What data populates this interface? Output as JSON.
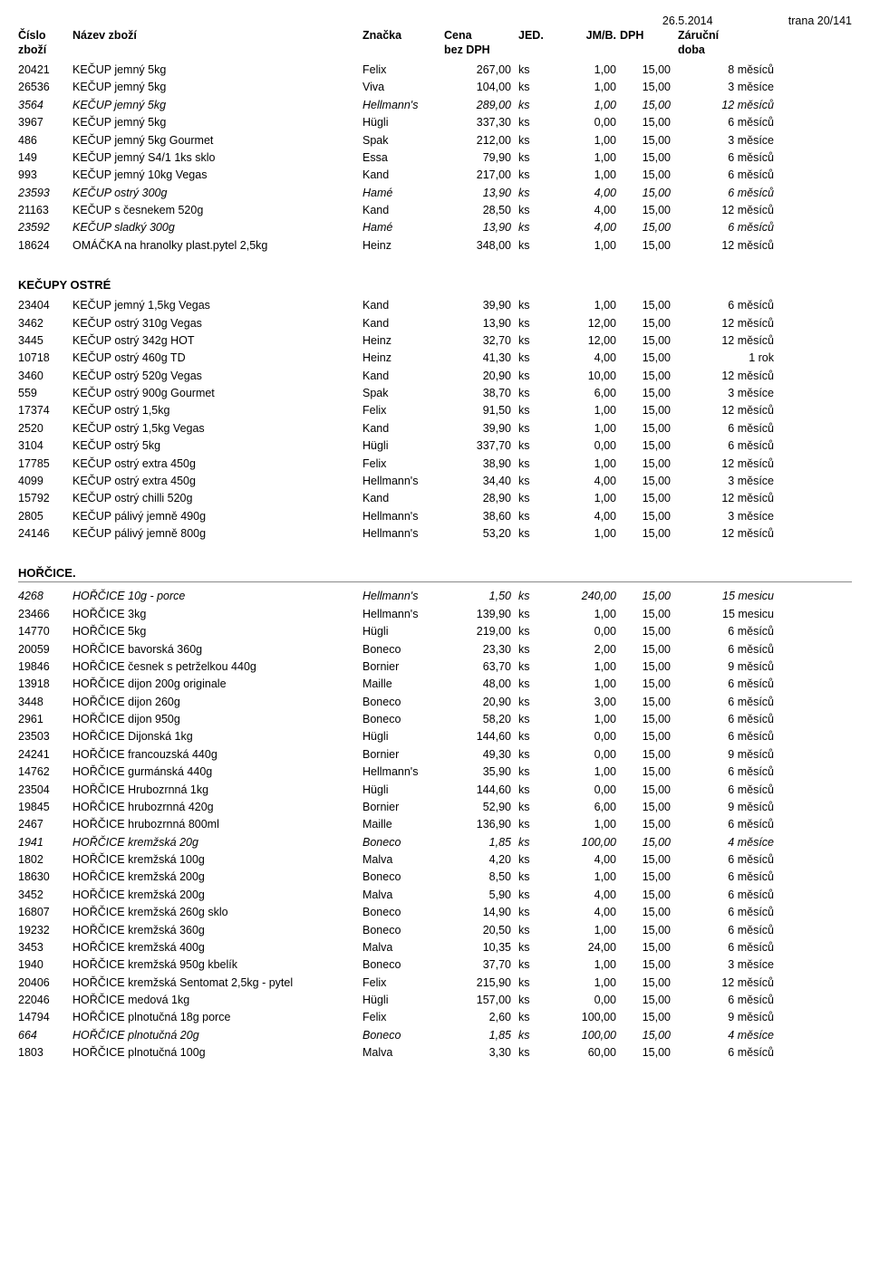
{
  "meta": {
    "date": "26.5.2014",
    "page": "trana 20/141"
  },
  "headers": {
    "c0a": "Číslo",
    "c0b": "zboží",
    "c1": "Název zboží",
    "c2": "Značka",
    "c3a": "Cena",
    "c3b": "bez DPH",
    "c4": "JED.",
    "c5": "JM/B.",
    "c6": "DPH",
    "c7a": "Záruční",
    "c7b": "doba"
  },
  "sections": [
    {
      "title": null,
      "underline": false,
      "rows": [
        {
          "it": false,
          "c": [
            "20421",
            "KEČUP jemný  5kg",
            "Felix",
            "267,00",
            "ks",
            "1,00",
            "15,00",
            "8 měsíců"
          ]
        },
        {
          "it": false,
          "c": [
            "26536",
            "KEČUP jemný  5kg",
            "Viva",
            "104,00",
            "ks",
            "1,00",
            "15,00",
            "3 měsíce"
          ]
        },
        {
          "it": true,
          "c": [
            "3564",
            "KEČUP jemný  5kg",
            "Hellmann's",
            "289,00",
            "ks",
            "1,00",
            "15,00",
            "12 měsíců"
          ]
        },
        {
          "it": false,
          "c": [
            "3967",
            "KEČUP jemný  5kg",
            "Hügli",
            "337,30",
            "ks",
            "0,00",
            "15,00",
            "6 měsíců"
          ]
        },
        {
          "it": false,
          "c": [
            "486",
            "KEČUP jemný  5kg Gourmet",
            "Spak",
            "212,00",
            "ks",
            "1,00",
            "15,00",
            "3 měsíce"
          ]
        },
        {
          "it": false,
          "c": [
            "149",
            "KEČUP jemný S4/1 1ks sklo",
            "Essa",
            "79,90",
            "ks",
            "1,00",
            "15,00",
            "6 měsíců"
          ]
        },
        {
          "it": false,
          "c": [
            "993",
            "KEČUP jemný 10kg Vegas",
            "Kand",
            "217,00",
            "ks",
            "1,00",
            "15,00",
            "6 měsíců"
          ]
        },
        {
          "it": true,
          "c": [
            "23593",
            "KEČUP ostrý  300g",
            "Hamé",
            "13,90",
            "ks",
            "4,00",
            "15,00",
            "6 měsíců"
          ]
        },
        {
          "it": false,
          "c": [
            "21163",
            "KEČUP s česnekem  520g",
            "Kand",
            "28,50",
            "ks",
            "4,00",
            "15,00",
            "12 měsíců"
          ]
        },
        {
          "it": true,
          "c": [
            "23592",
            "KEČUP sladký  300g",
            "Hamé",
            "13,90",
            "ks",
            "4,00",
            "15,00",
            "6 měsíců"
          ]
        },
        {
          "it": false,
          "c": [
            "18624",
            "OMÁČKA na hranolky plast.pytel  2,5kg",
            "Heinz",
            "348,00",
            "ks",
            "1,00",
            "15,00",
            "12 měsíců"
          ]
        }
      ]
    },
    {
      "title": "KEČUPY OSTRÉ",
      "underline": false,
      "rows": [
        {
          "it": false,
          "c": [
            "23404",
            "KEČUP jemný 1,5kg Vegas",
            "Kand",
            "39,90",
            "ks",
            "1,00",
            "15,00",
            "6 měsíců"
          ]
        },
        {
          "it": false,
          "c": [
            "3462",
            "KEČUP ostrý  310g Vegas",
            "Kand",
            "13,90",
            "ks",
            "12,00",
            "15,00",
            "12 měsíců"
          ]
        },
        {
          "it": false,
          "c": [
            "3445",
            "KEČUP ostrý  342g HOT",
            "Heinz",
            "32,70",
            "ks",
            "12,00",
            "15,00",
            "12 měsíců"
          ]
        },
        {
          "it": false,
          "c": [
            "10718",
            "KEČUP ostrý  460g TD",
            "Heinz",
            "41,30",
            "ks",
            "4,00",
            "15,00",
            "1 rok"
          ]
        },
        {
          "it": false,
          "c": [
            "3460",
            "KEČUP ostrý  520g Vegas",
            "Kand",
            "20,90",
            "ks",
            "10,00",
            "15,00",
            "12 měsíců"
          ]
        },
        {
          "it": false,
          "c": [
            "559",
            "KEČUP ostrý  900g Gourmet",
            "Spak",
            "38,70",
            "ks",
            "6,00",
            "15,00",
            "3 měsíce"
          ]
        },
        {
          "it": false,
          "c": [
            "17374",
            "KEČUP ostrý 1,5kg",
            "Felix",
            "91,50",
            "ks",
            "1,00",
            "15,00",
            "12 měsíců"
          ]
        },
        {
          "it": false,
          "c": [
            "2520",
            "KEČUP ostrý 1,5kg Vegas",
            "Kand",
            "39,90",
            "ks",
            "1,00",
            "15,00",
            "6 měsíců"
          ]
        },
        {
          "it": false,
          "c": [
            "3104",
            "KEČUP ostrý 5kg",
            "Hügli",
            "337,70",
            "ks",
            "0,00",
            "15,00",
            "6 měsíců"
          ]
        },
        {
          "it": false,
          "c": [
            "17785",
            "KEČUP ostrý extra 450g",
            "Felix",
            "38,90",
            "ks",
            "1,00",
            "15,00",
            "12 měsíců"
          ]
        },
        {
          "it": false,
          "c": [
            "4099",
            "KEČUP ostrý extra 450g",
            "Hellmann's",
            "34,40",
            "ks",
            "4,00",
            "15,00",
            "3 měsíce"
          ]
        },
        {
          "it": false,
          "c": [
            "15792",
            "KEČUP ostrý chilli 520g",
            "Kand",
            "28,90",
            "ks",
            "1,00",
            "15,00",
            "12 měsíců"
          ]
        },
        {
          "it": false,
          "c": [
            "2805",
            "KEČUP pálivý jemně 490g",
            "Hellmann's",
            "38,60",
            "ks",
            "4,00",
            "15,00",
            "3 měsíce"
          ]
        },
        {
          "it": false,
          "c": [
            "24146",
            "KEČUP pálivý jemně 800g",
            "Hellmann's",
            "53,20",
            "ks",
            "1,00",
            "15,00",
            "12 měsíců"
          ]
        }
      ]
    },
    {
      "title": "HOŘČICE.",
      "underline": true,
      "rows": [
        {
          "it": true,
          "c": [
            "4268",
            "HOŘČICE 10g - porce",
            "Hellmann's",
            "1,50",
            "ks",
            "240,00",
            "15,00",
            "15 mesicu"
          ]
        },
        {
          "it": false,
          "c": [
            "23466",
            "HOŘČICE 3kg",
            "Hellmann's",
            "139,90",
            "ks",
            "1,00",
            "15,00",
            "15 mesicu"
          ]
        },
        {
          "it": false,
          "c": [
            "14770",
            "HOŘČICE 5kg",
            "Hügli",
            "219,00",
            "ks",
            "0,00",
            "15,00",
            "6 měsíců"
          ]
        },
        {
          "it": false,
          "c": [
            "20059",
            "HOŘČICE bavorská 360g",
            "Boneco",
            "23,30",
            "ks",
            "2,00",
            "15,00",
            "6 měsíců"
          ]
        },
        {
          "it": false,
          "c": [
            "19846",
            "HOŘČICE česnek s petrželkou 440g",
            "Bornier",
            "63,70",
            "ks",
            "1,00",
            "15,00",
            "9 měsíců"
          ]
        },
        {
          "it": false,
          "c": [
            "13918",
            "HOŘČICE dijon 200g originale",
            "Maille",
            "48,00",
            "ks",
            "1,00",
            "15,00",
            "6 měsíců"
          ]
        },
        {
          "it": false,
          "c": [
            "3448",
            "HOŘČICE dijon 260g",
            "Boneco",
            "20,90",
            "ks",
            "3,00",
            "15,00",
            "6 měsíců"
          ]
        },
        {
          "it": false,
          "c": [
            "2961",
            "HOŘČICE dijon 950g",
            "Boneco",
            "58,20",
            "ks",
            "1,00",
            "15,00",
            "6 měsíců"
          ]
        },
        {
          "it": false,
          "c": [
            "23503",
            "HOŘČICE Dijonská 1kg",
            "Hügli",
            "144,60",
            "ks",
            "0,00",
            "15,00",
            "6 měsíců"
          ]
        },
        {
          "it": false,
          "c": [
            "24241",
            "HOŘČICE francouzská 440g",
            "Bornier",
            "49,30",
            "ks",
            "0,00",
            "15,00",
            "9 měsíců"
          ]
        },
        {
          "it": false,
          "c": [
            "14762",
            "HOŘČICE gurmánská 440g",
            "Hellmann's",
            "35,90",
            "ks",
            "1,00",
            "15,00",
            "6 měsíců"
          ]
        },
        {
          "it": false,
          "c": [
            "23504",
            "HOŘČICE Hrubozrnná 1kg",
            "Hügli",
            "144,60",
            "ks",
            "0,00",
            "15,00",
            "6 měsíců"
          ]
        },
        {
          "it": false,
          "c": [
            "19845",
            "HOŘČICE hrubozrnná 420g",
            "Bornier",
            "52,90",
            "ks",
            "6,00",
            "15,00",
            "9 měsíců"
          ]
        },
        {
          "it": false,
          "c": [
            "2467",
            "HOŘČICE hrubozrnná 800ml",
            "Maille",
            "136,90",
            "ks",
            "1,00",
            "15,00",
            "6 měsíců"
          ]
        },
        {
          "it": true,
          "c": [
            "1941",
            "HOŘČICE kremžská  20g",
            "Boneco",
            "1,85",
            "ks",
            "100,00",
            "15,00",
            "4 měsíce"
          ]
        },
        {
          "it": false,
          "c": [
            "1802",
            "HOŘČICE kremžská 100g",
            "Malva",
            "4,20",
            "ks",
            "4,00",
            "15,00",
            "6 měsíců"
          ]
        },
        {
          "it": false,
          "c": [
            "18630",
            "HOŘČICE kremžská 200g",
            "Boneco",
            "8,50",
            "ks",
            "1,00",
            "15,00",
            "6 měsíců"
          ]
        },
        {
          "it": false,
          "c": [
            "3452",
            "HOŘČICE kremžská 200g",
            "Malva",
            "5,90",
            "ks",
            "4,00",
            "15,00",
            "6 měsíců"
          ]
        },
        {
          "it": false,
          "c": [
            "16807",
            "HOŘČICE kremžská 260g sklo",
            "Boneco",
            "14,90",
            "ks",
            "4,00",
            "15,00",
            "6 měsíců"
          ]
        },
        {
          "it": false,
          "c": [
            "19232",
            "HOŘČICE kremžská 360g",
            "Boneco",
            "20,50",
            "ks",
            "1,00",
            "15,00",
            "6 měsíců"
          ]
        },
        {
          "it": false,
          "c": [
            "3453",
            "HOŘČICE kremžská 400g",
            "Malva",
            "10,35",
            "ks",
            "24,00",
            "15,00",
            "6 měsíců"
          ]
        },
        {
          "it": false,
          "c": [
            "1940",
            "HOŘČICE kremžská 950g kbelík",
            "Boneco",
            "37,70",
            "ks",
            "1,00",
            "15,00",
            "3 měsíce"
          ]
        },
        {
          "it": false,
          "c": [
            "20406",
            "HOŘČICE kremžská Sentomat 2,5kg - pytel",
            "Felix",
            "215,90",
            "ks",
            "1,00",
            "15,00",
            "12 měsíců"
          ]
        },
        {
          "it": false,
          "c": [
            "22046",
            "HOŘČICE medová 1kg",
            "Hügli",
            "157,00",
            "ks",
            "0,00",
            "15,00",
            "6 měsíců"
          ]
        },
        {
          "it": false,
          "c": [
            "14794",
            "HOŘČICE plnotučná   18g porce",
            "Felix",
            "2,60",
            "ks",
            "100,00",
            "15,00",
            "9 měsíců"
          ]
        },
        {
          "it": true,
          "c": [
            "664",
            "HOŘČICE plnotučná  20g",
            "Boneco",
            "1,85",
            "ks",
            "100,00",
            "15,00",
            "4 měsíce"
          ]
        },
        {
          "it": false,
          "c": [
            "1803",
            "HOŘČICE plnotučná  100g",
            "Malva",
            "3,30",
            "ks",
            "60,00",
            "15,00",
            "6 měsíců"
          ]
        }
      ]
    }
  ]
}
